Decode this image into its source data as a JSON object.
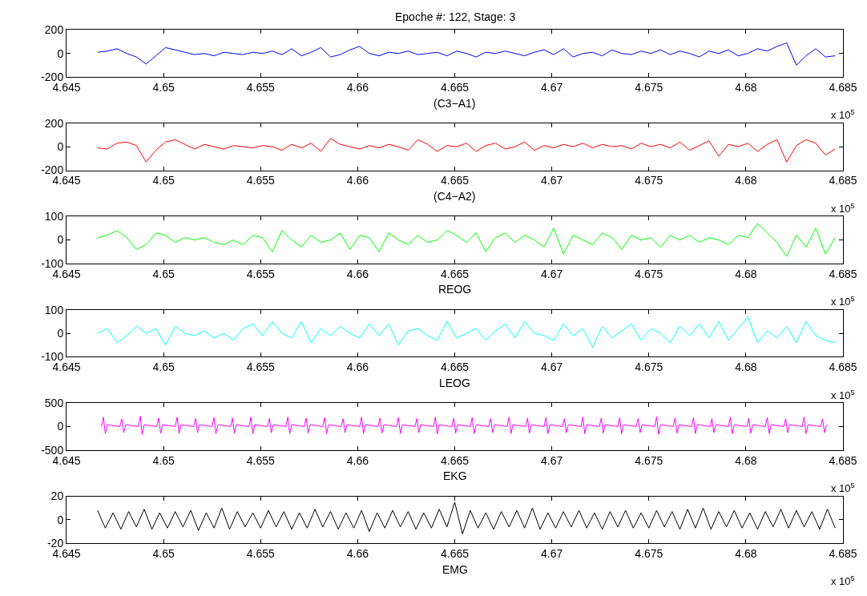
{
  "chart_data": [
    {
      "type": "line",
      "title": "Epoche #: 122, Stage: 3",
      "xlabel": "(C3−A1)",
      "annotations": [
        "x 10$^{5}$"
      ],
      "x": [
        4.6466,
        4.6471,
        4.6476,
        4.6481,
        4.6486,
        4.6491,
        4.6496,
        4.6501,
        4.6506,
        4.6511,
        4.6516,
        4.6521,
        4.6526,
        4.6531,
        4.6536,
        4.6541,
        4.6546,
        4.6551,
        4.6556,
        4.6561,
        4.6566,
        4.6571,
        4.6576,
        4.6581,
        4.6586,
        4.6591,
        4.6596,
        4.6601,
        4.6606,
        4.6611,
        4.6616,
        4.6621,
        4.6626,
        4.6631,
        4.6636,
        4.6641,
        4.6646,
        4.6651,
        4.6656,
        4.6661,
        4.6666,
        4.6671,
        4.6676,
        4.6681,
        4.6686,
        4.6691,
        4.6696,
        4.6701,
        4.6706,
        4.6711,
        4.6716,
        4.6721,
        4.6726,
        4.6731,
        4.6736,
        4.6741,
        4.6746,
        4.6751,
        4.6756,
        4.6761,
        4.6766,
        4.6771,
        4.6776,
        4.6781,
        4.6786,
        4.6791,
        4.6796,
        4.6801,
        4.6806,
        4.6811,
        4.6816,
        4.6821,
        4.6826,
        4.6831,
        4.6836,
        4.6841,
        4.6846
      ],
      "series": [
        {
          "color": "#0000ff",
          "values": [
            10,
            20,
            40,
            0,
            -30,
            -90,
            -20,
            50,
            30,
            10,
            -10,
            0,
            -20,
            10,
            0,
            -10,
            10,
            0,
            20,
            -10,
            40,
            -20,
            10,
            50,
            -30,
            -10,
            30,
            60,
            0,
            -20,
            10,
            0,
            20,
            -10,
            0,
            10,
            -20,
            20,
            0,
            -30,
            10,
            0,
            20,
            0,
            -20,
            10,
            30,
            -10,
            40,
            -30,
            0,
            10,
            -20,
            30,
            0,
            -10,
            20,
            0,
            30,
            -10,
            20,
            0,
            -30,
            20,
            0,
            30,
            -20,
            0,
            40,
            20,
            60,
            90,
            -100,
            -20,
            40,
            -30,
            -20
          ]
        }
      ],
      "xlim": [
        4.645,
        4.685
      ],
      "xticks": [
        4.645,
        4.65,
        4.655,
        4.66,
        4.665,
        4.67,
        4.675,
        4.68,
        4.685
      ],
      "ylim": [
        -200,
        200
      ],
      "yticks": [
        -200,
        0,
        200
      ]
    },
    {
      "type": "line",
      "xlabel": "(C4−A2)",
      "annotations": [
        "x 10$^{5}$"
      ],
      "x": [
        4.6466,
        4.6471,
        4.6476,
        4.6481,
        4.6486,
        4.6491,
        4.6496,
        4.6501,
        4.6506,
        4.6511,
        4.6516,
        4.6521,
        4.6526,
        4.6531,
        4.6536,
        4.6541,
        4.6546,
        4.6551,
        4.6556,
        4.6561,
        4.6566,
        4.6571,
        4.6576,
        4.6581,
        4.6586,
        4.6591,
        4.6596,
        4.6601,
        4.6606,
        4.6611,
        4.6616,
        4.6621,
        4.6626,
        4.6631,
        4.6636,
        4.6641,
        4.6646,
        4.6651,
        4.6656,
        4.6661,
        4.6666,
        4.6671,
        4.6676,
        4.6681,
        4.6686,
        4.6691,
        4.6696,
        4.6701,
        4.6706,
        4.6711,
        4.6716,
        4.6721,
        4.6726,
        4.6731,
        4.6736,
        4.6741,
        4.6746,
        4.6751,
        4.6756,
        4.6761,
        4.6766,
        4.6771,
        4.6776,
        4.6781,
        4.6786,
        4.6791,
        4.6796,
        4.6801,
        4.6806,
        4.6811,
        4.6816,
        4.6821,
        4.6826,
        4.6831,
        4.6836,
        4.6841,
        4.6846
      ],
      "series": [
        {
          "color": "#ff0000",
          "values": [
            -10,
            -20,
            30,
            40,
            10,
            -130,
            -30,
            40,
            60,
            20,
            -20,
            20,
            0,
            -20,
            10,
            0,
            -10,
            10,
            0,
            -30,
            20,
            -10,
            30,
            -40,
            70,
            20,
            0,
            -20,
            10,
            -10,
            20,
            0,
            -30,
            60,
            20,
            -40,
            10,
            0,
            30,
            -40,
            10,
            30,
            -20,
            0,
            40,
            -30,
            10,
            -10,
            20,
            0,
            30,
            -10,
            20,
            0,
            10,
            -20,
            30,
            0,
            20,
            -10,
            40,
            -30,
            10,
            50,
            -80,
            20,
            0,
            30,
            -40,
            20,
            60,
            -130,
            10,
            60,
            30,
            -70,
            -20
          ]
        }
      ],
      "xlim": [
        4.645,
        4.685
      ],
      "xticks": [
        4.645,
        4.65,
        4.655,
        4.66,
        4.665,
        4.67,
        4.675,
        4.68,
        4.685
      ],
      "ylim": [
        -200,
        200
      ],
      "yticks": [
        -200,
        0,
        200
      ]
    },
    {
      "type": "line",
      "xlabel": "REOG",
      "annotations": [
        "x 10$^{5}$"
      ],
      "x": [
        4.6466,
        4.6471,
        4.6476,
        4.6481,
        4.6486,
        4.6491,
        4.6496,
        4.6501,
        4.6506,
        4.6511,
        4.6516,
        4.6521,
        4.6526,
        4.6531,
        4.6536,
        4.6541,
        4.6546,
        4.6551,
        4.6556,
        4.6561,
        4.6566,
        4.6571,
        4.6576,
        4.6581,
        4.6586,
        4.6591,
        4.6596,
        4.6601,
        4.6606,
        4.6611,
        4.6616,
        4.6621,
        4.6626,
        4.6631,
        4.6636,
        4.6641,
        4.6646,
        4.6651,
        4.6656,
        4.6661,
        4.6666,
        4.6671,
        4.6676,
        4.6681,
        4.6686,
        4.6691,
        4.6696,
        4.6701,
        4.6706,
        4.6711,
        4.6716,
        4.6721,
        4.6726,
        4.6731,
        4.6736,
        4.6741,
        4.6746,
        4.6751,
        4.6756,
        4.6761,
        4.6766,
        4.6771,
        4.6776,
        4.6781,
        4.6786,
        4.6791,
        4.6796,
        4.6801,
        4.6806,
        4.6811,
        4.6816,
        4.6821,
        4.6826,
        4.6831,
        4.6836,
        4.6841,
        4.6846
      ],
      "series": [
        {
          "color": "#00ff00",
          "values": [
            10,
            20,
            40,
            10,
            -40,
            -20,
            30,
            20,
            -10,
            10,
            0,
            10,
            -10,
            -20,
            0,
            -20,
            20,
            10,
            -50,
            40,
            0,
            -30,
            20,
            -10,
            0,
            30,
            -40,
            20,
            10,
            -50,
            30,
            0,
            -20,
            20,
            -10,
            0,
            40,
            20,
            -10,
            30,
            -50,
            10,
            30,
            -10,
            20,
            0,
            -30,
            50,
            -60,
            20,
            0,
            -20,
            30,
            10,
            -40,
            20,
            0,
            10,
            -30,
            20,
            0,
            20,
            -10,
            10,
            0,
            -20,
            20,
            10,
            70,
            30,
            -10,
            -70,
            20,
            -30,
            50,
            -60,
            10
          ]
        }
      ],
      "xlim": [
        4.645,
        4.685
      ],
      "xticks": [
        4.645,
        4.65,
        4.655,
        4.66,
        4.665,
        4.67,
        4.675,
        4.68,
        4.685
      ],
      "ylim": [
        -100,
        100
      ],
      "yticks": [
        -100,
        0,
        100
      ]
    },
    {
      "type": "line",
      "xlabel": "LEOG",
      "annotations": [
        "x 10$^{5}$"
      ],
      "x": [
        4.6466,
        4.6471,
        4.6476,
        4.6481,
        4.6486,
        4.6491,
        4.6496,
        4.6501,
        4.6506,
        4.6511,
        4.6516,
        4.6521,
        4.6526,
        4.6531,
        4.6536,
        4.6541,
        4.6546,
        4.6551,
        4.6556,
        4.6561,
        4.6566,
        4.6571,
        4.6576,
        4.6581,
        4.6586,
        4.6591,
        4.6596,
        4.6601,
        4.6606,
        4.6611,
        4.6616,
        4.6621,
        4.6626,
        4.6631,
        4.6636,
        4.6641,
        4.6646,
        4.6651,
        4.6656,
        4.6661,
        4.6666,
        4.6671,
        4.6676,
        4.6681,
        4.6686,
        4.6691,
        4.6696,
        4.6701,
        4.6706,
        4.6711,
        4.6716,
        4.6721,
        4.6726,
        4.6731,
        4.6736,
        4.6741,
        4.6746,
        4.6751,
        4.6756,
        4.6761,
        4.6766,
        4.6771,
        4.6776,
        4.6781,
        4.6786,
        4.6791,
        4.6796,
        4.6801,
        4.6806,
        4.6811,
        4.6816,
        4.6821,
        4.6826,
        4.6831,
        4.6836,
        4.6841,
        4.6846
      ],
      "series": [
        {
          "color": "#00ffff",
          "values": [
            0,
            20,
            -40,
            -10,
            30,
            0,
            20,
            -50,
            30,
            0,
            -10,
            10,
            -20,
            0,
            -30,
            20,
            40,
            -10,
            50,
            0,
            -20,
            50,
            -40,
            20,
            -10,
            30,
            0,
            -20,
            40,
            -10,
            40,
            -50,
            10,
            20,
            -10,
            -30,
            50,
            -20,
            0,
            20,
            -30,
            10,
            40,
            -20,
            50,
            0,
            -10,
            -30,
            40,
            -10,
            20,
            -60,
            30,
            -20,
            10,
            40,
            -30,
            20,
            0,
            -40,
            30,
            -10,
            40,
            -20,
            50,
            -30,
            20,
            70,
            -40,
            10,
            -20,
            30,
            -40,
            50,
            -10,
            -30,
            -40
          ]
        }
      ],
      "xlim": [
        4.645,
        4.685
      ],
      "xticks": [
        4.645,
        4.65,
        4.655,
        4.66,
        4.665,
        4.67,
        4.675,
        4.68,
        4.685
      ],
      "ylim": [
        -100,
        100
      ],
      "yticks": [
        -100,
        0,
        100
      ]
    },
    {
      "type": "line",
      "xlabel": "EKG",
      "annotations": [
        "x 10$^{5}$"
      ],
      "x": [
        4.6468,
        4.6469,
        4.647,
        4.6471,
        4.64775,
        4.64785,
        4.64795,
        4.64805,
        4.6487,
        4.6488,
        4.6489,
        4.649,
        4.64965,
        4.64975,
        4.64985,
        4.64995,
        4.6506,
        4.6507,
        4.6508,
        4.6509,
        4.65155,
        4.65165,
        4.65175,
        4.65185,
        4.6525,
        4.6526,
        4.6527,
        4.6528,
        4.65345,
        4.65355,
        4.65365,
        4.65375,
        4.6544,
        4.6545,
        4.6546,
        4.6547,
        4.65535,
        4.65545,
        4.65555,
        4.65565,
        4.6563,
        4.6564,
        4.6565,
        4.6566,
        4.65725,
        4.65735,
        4.65745,
        4.65755,
        4.6582,
        4.6583,
        4.6584,
        4.6585,
        4.65915,
        4.65925,
        4.65935,
        4.65945,
        4.6601,
        4.6602,
        4.6603,
        4.6604,
        4.66105,
        4.66115,
        4.66125,
        4.66135,
        4.662,
        4.6621,
        4.6622,
        4.6623,
        4.66295,
        4.66305,
        4.66315,
        4.66325,
        4.6639,
        4.664,
        4.6641,
        4.6642,
        4.66485,
        4.66495,
        4.66505,
        4.66515,
        4.6658,
        4.6659,
        4.666,
        4.6661,
        4.66675,
        4.66685,
        4.66695,
        4.66705,
        4.6677,
        4.6678,
        4.6679,
        4.668,
        4.66865,
        4.66875,
        4.66885,
        4.66895,
        4.6696,
        4.6697,
        4.6698,
        4.6699,
        4.67055,
        4.67065,
        4.67075,
        4.67085,
        4.6715,
        4.6716,
        4.6717,
        4.6718,
        4.67245,
        4.67255,
        4.67265,
        4.67275,
        4.6734,
        4.6735,
        4.6736,
        4.6737,
        4.67435,
        4.67445,
        4.67455,
        4.67465,
        4.6753,
        4.6754,
        4.6755,
        4.6756,
        4.67625,
        4.67635,
        4.67645,
        4.67655,
        4.6772,
        4.6773,
        4.6774,
        4.6775,
        4.67815,
        4.67825,
        4.67835,
        4.67845,
        4.6791,
        4.6792,
        4.6793,
        4.6794,
        4.68005,
        4.68015,
        4.68025,
        4.68035,
        4.681,
        4.6811,
        4.6812,
        4.6813,
        4.68195,
        4.68205,
        4.68215,
        4.68225,
        4.6829,
        4.683,
        4.6831,
        4.6832,
        4.68385,
        4.68395,
        4.68405,
        4.68415
      ],
      "series": [
        {
          "color": "#ff00ff",
          "values": [
            0,
            200,
            -150,
            40,
            0,
            160,
            -130,
            40,
            0,
            220,
            -170,
            40,
            0,
            180,
            -140,
            40,
            0,
            200,
            -150,
            40,
            0,
            170,
            -130,
            40,
            0,
            190,
            -150,
            40,
            0,
            180,
            -140,
            40,
            0,
            200,
            -160,
            40,
            0,
            170,
            -130,
            40,
            0,
            200,
            -150,
            40,
            0,
            180,
            -140,
            40,
            0,
            190,
            -150,
            40,
            0,
            170,
            -130,
            40,
            0,
            200,
            -150,
            40,
            0,
            180,
            -140,
            40,
            0,
            190,
            -150,
            40,
            0,
            170,
            -130,
            40,
            0,
            200,
            -160,
            40,
            0,
            180,
            -140,
            40,
            0,
            190,
            -150,
            40,
            0,
            170,
            -130,
            40,
            0,
            200,
            -150,
            40,
            0,
            180,
            -140,
            40,
            0,
            190,
            -150,
            40,
            0,
            170,
            -130,
            40,
            0,
            200,
            -150,
            40,
            0,
            180,
            -140,
            40,
            0,
            190,
            -150,
            40,
            0,
            170,
            -130,
            40,
            0,
            210,
            -160,
            40,
            0,
            180,
            -140,
            40,
            0,
            190,
            -150,
            40,
            0,
            170,
            -130,
            40,
            0,
            200,
            -150,
            40,
            0,
            180,
            -140,
            40,
            0,
            190,
            -150,
            40,
            0,
            170,
            -130,
            40,
            0,
            200,
            -150,
            40,
            0,
            160,
            -130,
            40
          ]
        }
      ],
      "xlim": [
        4.645,
        4.685
      ],
      "xticks": [
        4.645,
        4.65,
        4.655,
        4.66,
        4.665,
        4.67,
        4.675,
        4.68,
        4.685
      ],
      "ylim": [
        -500,
        500
      ],
      "yticks": [
        -500,
        0,
        500
      ]
    },
    {
      "type": "line",
      "xlabel": "EMG",
      "annotations": [
        "x 10$^{5}$"
      ],
      "x": [
        4.6466,
        4.647,
        4.6474,
        4.6478,
        4.6482,
        4.6486,
        4.649,
        4.6494,
        4.6498,
        4.6502,
        4.6506,
        4.651,
        4.6514,
        4.6518,
        4.6522,
        4.6526,
        4.653,
        4.6534,
        4.6538,
        4.6542,
        4.6546,
        4.655,
        4.6554,
        4.6558,
        4.6562,
        4.6566,
        4.657,
        4.6574,
        4.6578,
        4.6582,
        4.6586,
        4.659,
        4.6594,
        4.6598,
        4.6602,
        4.6606,
        4.661,
        4.6614,
        4.6618,
        4.6622,
        4.6626,
        4.663,
        4.6634,
        4.6638,
        4.6642,
        4.6646,
        4.665,
        4.6654,
        4.6658,
        4.6662,
        4.6666,
        4.667,
        4.6674,
        4.6678,
        4.6682,
        4.6686,
        4.669,
        4.6694,
        4.6698,
        4.6702,
        4.6706,
        4.671,
        4.6714,
        4.6718,
        4.6722,
        4.6726,
        4.673,
        4.6734,
        4.6738,
        4.6742,
        4.6746,
        4.675,
        4.6754,
        4.6758,
        4.6762,
        4.6766,
        4.677,
        4.6774,
        4.6778,
        4.6782,
        4.6786,
        4.679,
        4.6794,
        4.6798,
        4.6802,
        4.6806,
        4.681,
        4.6814,
        4.6818,
        4.6822,
        4.6826,
        4.683,
        4.6834,
        4.6838,
        4.6842,
        4.6846
      ],
      "series": [
        {
          "color": "#000000",
          "values": [
            8,
            -7,
            6,
            -8,
            7,
            -6,
            9,
            -8,
            6,
            -7,
            7,
            -6,
            8,
            -9,
            6,
            -7,
            10,
            -8,
            7,
            -6,
            6,
            -7,
            8,
            -6,
            7,
            -8,
            6,
            -7,
            9,
            -6,
            7,
            -8,
            6,
            -7,
            8,
            -10,
            6,
            -7,
            8,
            -6,
            7,
            -8,
            6,
            -7,
            9,
            -6,
            15,
            -12,
            8,
            -7,
            6,
            -8,
            7,
            -6,
            8,
            -7,
            10,
            -8,
            6,
            -7,
            7,
            -6,
            8,
            -7,
            6,
            -8,
            7,
            -6,
            8,
            -7,
            6,
            -7,
            8,
            -6,
            7,
            -8,
            9,
            -7,
            10,
            -8,
            7,
            -6,
            8,
            -7,
            6,
            -8,
            7,
            -6,
            9,
            -7,
            8,
            -6,
            7,
            -8,
            9,
            -7
          ]
        }
      ],
      "xlim": [
        4.645,
        4.685
      ],
      "xticks": [
        4.645,
        4.65,
        4.655,
        4.66,
        4.665,
        4.67,
        4.675,
        4.68,
        4.685
      ],
      "ylim": [
        -20,
        20
      ],
      "yticks": [
        -20,
        0,
        20
      ]
    }
  ]
}
